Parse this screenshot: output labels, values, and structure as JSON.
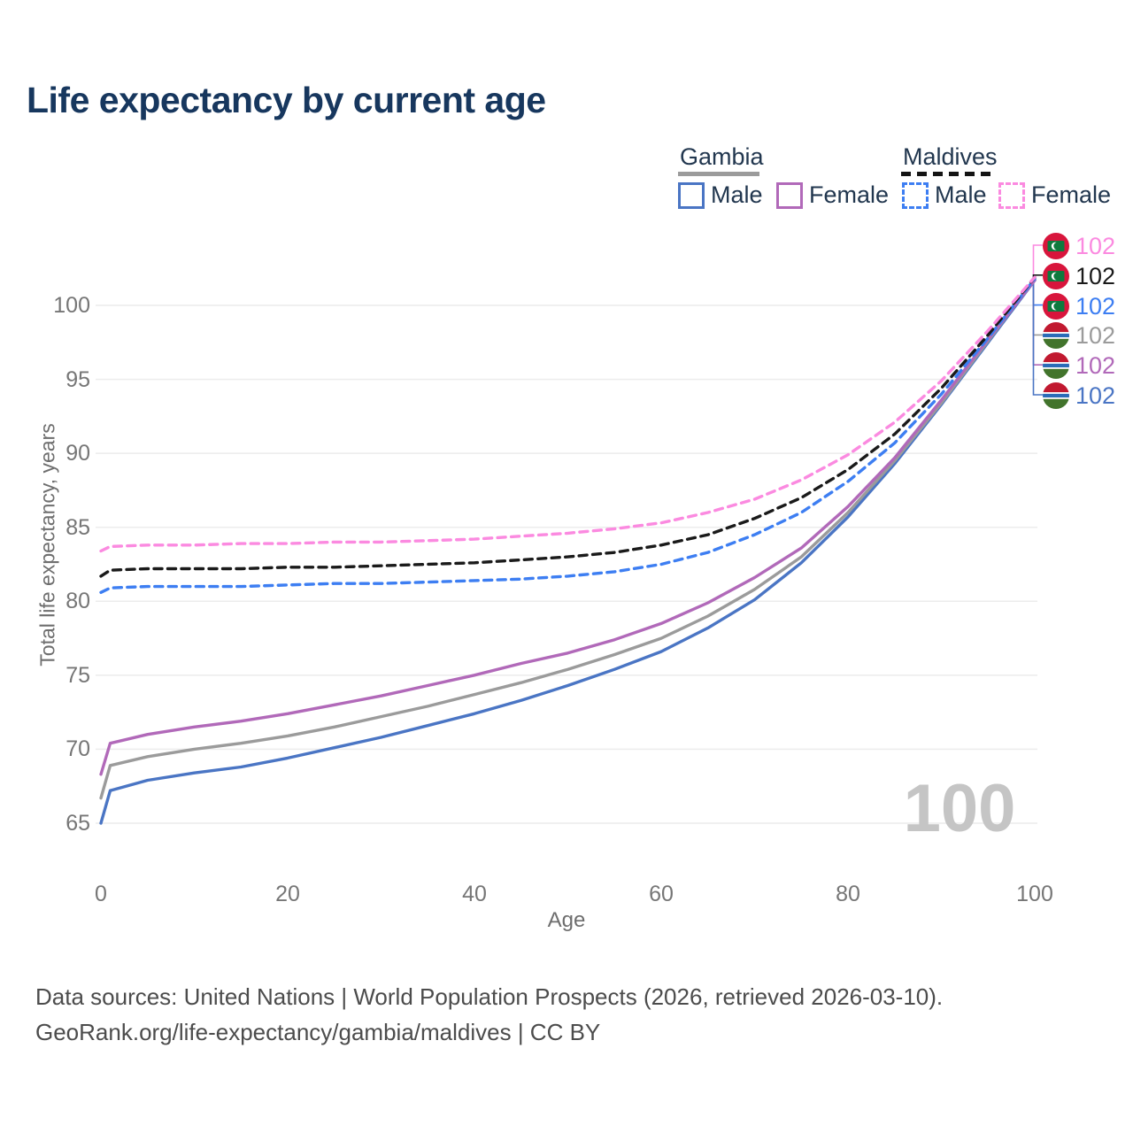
{
  "title": "Life expectancy by current age",
  "legend": {
    "groups": [
      {
        "label": "Gambia",
        "line_style": "solid",
        "underline_color": "#9b9b9b",
        "items": [
          {
            "label": "Male",
            "color": "#4a75c4"
          },
          {
            "label": "Female",
            "color": "#b169b9"
          }
        ]
      },
      {
        "label": "Maldives",
        "line_style": "dashed",
        "underline_color": "#141414",
        "items": [
          {
            "label": "Male",
            "color": "#3d7ef2"
          },
          {
            "label": "Female",
            "color": "#fb8ae0"
          }
        ]
      }
    ]
  },
  "watermark_age": "100",
  "axes": {
    "x_label": "Age",
    "y_label": "Total life expectancy, years",
    "x_ticks": [
      "0",
      "20",
      "40",
      "60",
      "80",
      "100"
    ],
    "y_ticks": [
      "65",
      "70",
      "75",
      "80",
      "85",
      "90",
      "95",
      "100"
    ]
  },
  "footer": {
    "line1": "Data sources: United Nations | World Population Prospects (2026, retrieved 2026-03-10).",
    "line2": "GeoRank.org/life-expectancy/gambia/maldives | CC BY"
  },
  "chart_data": {
    "type": "line",
    "title": "Life expectancy by current age",
    "xlabel": "Age",
    "ylabel": "Total life expectancy, years",
    "xlim": [
      0,
      100
    ],
    "ylim_displayed": [
      65,
      100
    ],
    "x_ticks": [
      0,
      20,
      40,
      60,
      80,
      100
    ],
    "y_ticks": [
      65,
      70,
      75,
      80,
      85,
      90,
      95,
      100
    ],
    "grid": "horizontal",
    "legend_position": "top-right",
    "ages": [
      0,
      1,
      5,
      10,
      15,
      20,
      25,
      30,
      35,
      40,
      45,
      50,
      55,
      60,
      65,
      70,
      75,
      80,
      85,
      90,
      95,
      100
    ],
    "series": [
      {
        "name": "Gambia Male",
        "country": "Gambia",
        "sex": "Male",
        "flag": "gambia",
        "color": "#4a75c4",
        "dashed": false,
        "end_label": "102",
        "end_row": 5,
        "values": [
          65.0,
          67.2,
          67.9,
          68.4,
          68.8,
          69.4,
          70.1,
          70.8,
          71.6,
          72.4,
          73.3,
          74.3,
          75.4,
          76.6,
          78.2,
          80.1,
          82.6,
          85.7,
          89.3,
          93.3,
          97.5,
          101.7
        ]
      },
      {
        "name": "Gambia All",
        "country": "Gambia",
        "sex": "All",
        "flag": "gambia",
        "color": "#9b9b9b",
        "dashed": false,
        "end_label": "102",
        "end_row": 3,
        "values": [
          66.7,
          68.9,
          69.5,
          70.0,
          70.4,
          70.9,
          71.5,
          72.2,
          72.9,
          73.7,
          74.5,
          75.4,
          76.4,
          77.5,
          79.0,
          80.8,
          83.0,
          86.0,
          89.5,
          93.4,
          97.6,
          101.8
        ]
      },
      {
        "name": "Gambia Female",
        "country": "Gambia",
        "sex": "Female",
        "flag": "gambia",
        "color": "#b169b9",
        "dashed": false,
        "end_label": "102",
        "end_row": 4,
        "values": [
          68.3,
          70.4,
          71.0,
          71.5,
          71.9,
          72.4,
          73.0,
          73.6,
          74.3,
          75.0,
          75.8,
          76.5,
          77.4,
          78.5,
          79.9,
          81.6,
          83.6,
          86.4,
          89.7,
          93.6,
          97.7,
          101.7
        ]
      },
      {
        "name": "Maldives Male",
        "country": "Maldives",
        "sex": "Male",
        "flag": "maldives",
        "color": "#3d7ef2",
        "dashed": true,
        "end_label": "102",
        "end_row": 2,
        "values": [
          80.6,
          80.9,
          81.0,
          81.0,
          81.0,
          81.1,
          81.2,
          81.2,
          81.3,
          81.4,
          81.5,
          81.7,
          82.0,
          82.5,
          83.3,
          84.5,
          86.0,
          88.1,
          90.7,
          94.0,
          97.8,
          101.8
        ]
      },
      {
        "name": "Maldives All",
        "country": "Maldives",
        "sex": "All",
        "flag": "maldives",
        "color": "#1a1a1a",
        "dashed": true,
        "end_label": "102",
        "end_row": 1,
        "values": [
          81.7,
          82.1,
          82.2,
          82.2,
          82.2,
          82.3,
          82.3,
          82.4,
          82.5,
          82.6,
          82.8,
          83.0,
          83.3,
          83.8,
          84.5,
          85.6,
          87.0,
          88.9,
          91.3,
          94.4,
          98.0,
          101.9
        ]
      },
      {
        "name": "Maldives Female",
        "country": "Maldives",
        "sex": "Female",
        "flag": "maldives",
        "color": "#fb8ae0",
        "dashed": true,
        "end_label": "102",
        "end_row": 0,
        "values": [
          83.4,
          83.7,
          83.8,
          83.8,
          83.9,
          83.9,
          84.0,
          84.0,
          84.1,
          84.2,
          84.4,
          84.6,
          84.9,
          85.3,
          86.0,
          86.9,
          88.2,
          89.9,
          92.1,
          94.9,
          98.3,
          101.9
        ]
      }
    ]
  }
}
